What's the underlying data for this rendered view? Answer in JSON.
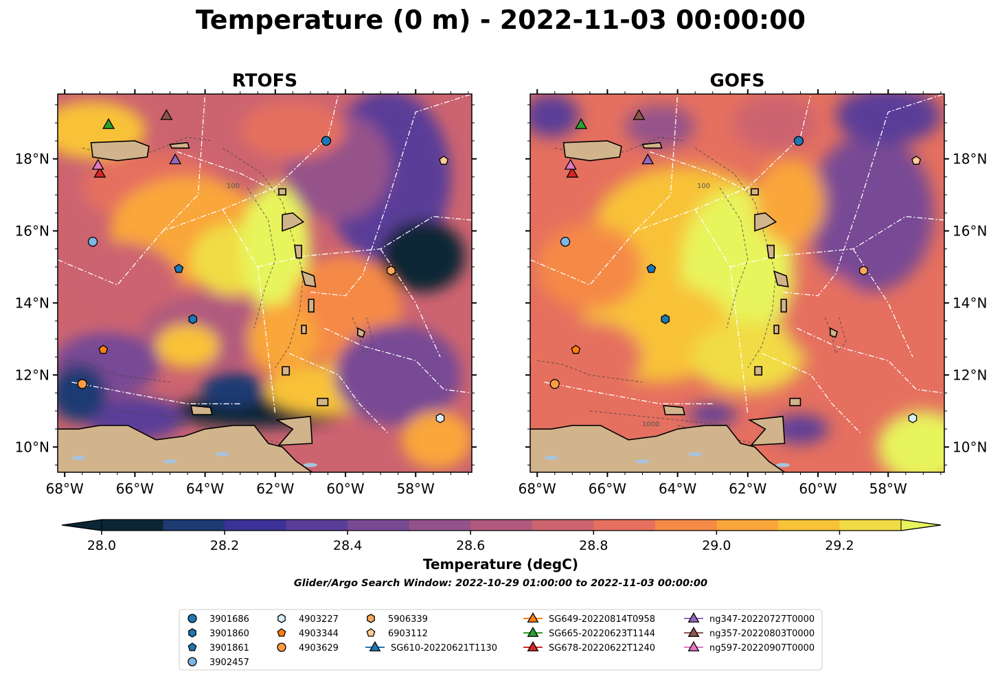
{
  "figure": {
    "title": "Temperature (0 m) - 2022-11-03 00:00:00",
    "search_window": "Glider/Argo Search Window: 2022-10-29 01:00:00 to 2022-11-03 00:00:00"
  },
  "panels": [
    {
      "title": "RTOFS",
      "model": "rtofs"
    },
    {
      "title": "GOFS",
      "model": "gofs"
    }
  ],
  "axes": {
    "lon_range": [
      -68.2,
      -56.4
    ],
    "lat_range": [
      9.3,
      19.8
    ],
    "x_ticks": [
      {
        "value": -68,
        "label": "68°W"
      },
      {
        "value": -66,
        "label": "66°W"
      },
      {
        "value": -64,
        "label": "64°W"
      },
      {
        "value": -62,
        "label": "62°W"
      },
      {
        "value": -60,
        "label": "60°W"
      },
      {
        "value": -58,
        "label": "58°W"
      }
    ],
    "y_ticks": [
      {
        "value": 10,
        "label": "10°N"
      },
      {
        "value": 12,
        "label": "12°N"
      },
      {
        "value": 14,
        "label": "14°N"
      },
      {
        "value": 16,
        "label": "16°N"
      },
      {
        "value": 18,
        "label": "18°N"
      }
    ],
    "contour_labels": [
      "100",
      "1000"
    ]
  },
  "colorbar": {
    "label": "Temperature (degC)",
    "min": 28.0,
    "max": 29.3,
    "step": 0.1,
    "ticks": [
      {
        "value": 28.0,
        "label": "28.0"
      },
      {
        "value": 28.2,
        "label": "28.2"
      },
      {
        "value": 28.4,
        "label": "28.4"
      },
      {
        "value": 28.6,
        "label": "28.6"
      },
      {
        "value": 28.8,
        "label": "28.8"
      },
      {
        "value": 29.0,
        "label": "29.0"
      },
      {
        "value": 29.2,
        "label": "29.2"
      }
    ],
    "colors": [
      "#0b2636",
      "#1e3a73",
      "#3a3296",
      "#5a3d98",
      "#784a94",
      "#95528a",
      "#b15a7e",
      "#cc6470",
      "#e5705f",
      "#f58a47",
      "#f9a63a",
      "#f8c239",
      "#f1dc45",
      "#e8f45b"
    ],
    "extend_low": "#0b2636",
    "extend_high": "#e8f45b"
  },
  "colors": {
    "land": "#d2b48c",
    "lakes": "#a6c4dc",
    "coast": "#000000",
    "eez": "#ffffff"
  },
  "markers": [
    {
      "id": "3901686",
      "shape": "circle",
      "color": "#1f77b4",
      "lon": -60.55,
      "lat": 18.5
    },
    {
      "id": "3901860",
      "shape": "hexagon",
      "color": "#1f77b4",
      "lon": -64.35,
      "lat": 13.55
    },
    {
      "id": "3901861",
      "shape": "pentagon",
      "color": "#1f77b4",
      "lon": -64.75,
      "lat": 14.95
    },
    {
      "id": "3902457",
      "shape": "circle",
      "color": "#7fb6e6",
      "lon": -67.2,
      "lat": 15.7
    },
    {
      "id": "4903227",
      "shape": "hexagon",
      "color": "#d8eefc",
      "lon": -57.3,
      "lat": 10.8
    },
    {
      "id": "4903344",
      "shape": "pentagon",
      "color": "#ff7f0e",
      "lon": -66.9,
      "lat": 12.7
    },
    {
      "id": "4903629",
      "shape": "circle",
      "color": "#ff9c40",
      "lon": -67.5,
      "lat": 11.75
    },
    {
      "id": "5906339",
      "shape": "hexagon",
      "color": "#ffa85c",
      "lon": -58.7,
      "lat": 14.9
    },
    {
      "id": "6903112",
      "shape": "pentagon",
      "color": "#ffcb94",
      "lon": -57.2,
      "lat": 17.95
    },
    {
      "id": "SG610-20220621T1130",
      "shape": "triangle",
      "color": "#1f77b4",
      "line": true
    },
    {
      "id": "SG649-20220814T0958",
      "shape": "triangle",
      "color": "#ff7f0e",
      "line": true
    },
    {
      "id": "SG665-20220623T1144",
      "shape": "triangle",
      "color": "#2ca02c",
      "line": true,
      "lon": -66.75,
      "lat": 18.95
    },
    {
      "id": "SG678-20220622T1240",
      "shape": "triangle",
      "color": "#d62728",
      "line": true,
      "lon": -67.0,
      "lat": 17.6
    },
    {
      "id": "ng347-20220727T0000",
      "shape": "triangle",
      "color": "#9467bd",
      "line": true,
      "lon": -64.85,
      "lat": 17.97
    },
    {
      "id": "ng357-20220803T0000",
      "shape": "triangle",
      "color": "#8c564b",
      "line": true,
      "lon": -65.1,
      "lat": 19.2
    },
    {
      "id": "ng597-20220907T0000",
      "shape": "triangle",
      "color": "#e377c2",
      "line": true,
      "lon": -67.05,
      "lat": 17.82
    }
  ],
  "legend_columns": [
    [
      "3901686",
      "3901860",
      "3901861",
      "3902457"
    ],
    [
      "4903227",
      "4903344",
      "4903629"
    ],
    [
      "5906339",
      "6903112",
      "SG610-20220621T1130"
    ],
    [
      "SG649-20220814T0958",
      "SG665-20220623T1144",
      "SG678-20220622T1240"
    ],
    [
      "ng347-20220727T0000",
      "ng357-20220803T0000",
      "ng597-20220907T0000"
    ]
  ]
}
